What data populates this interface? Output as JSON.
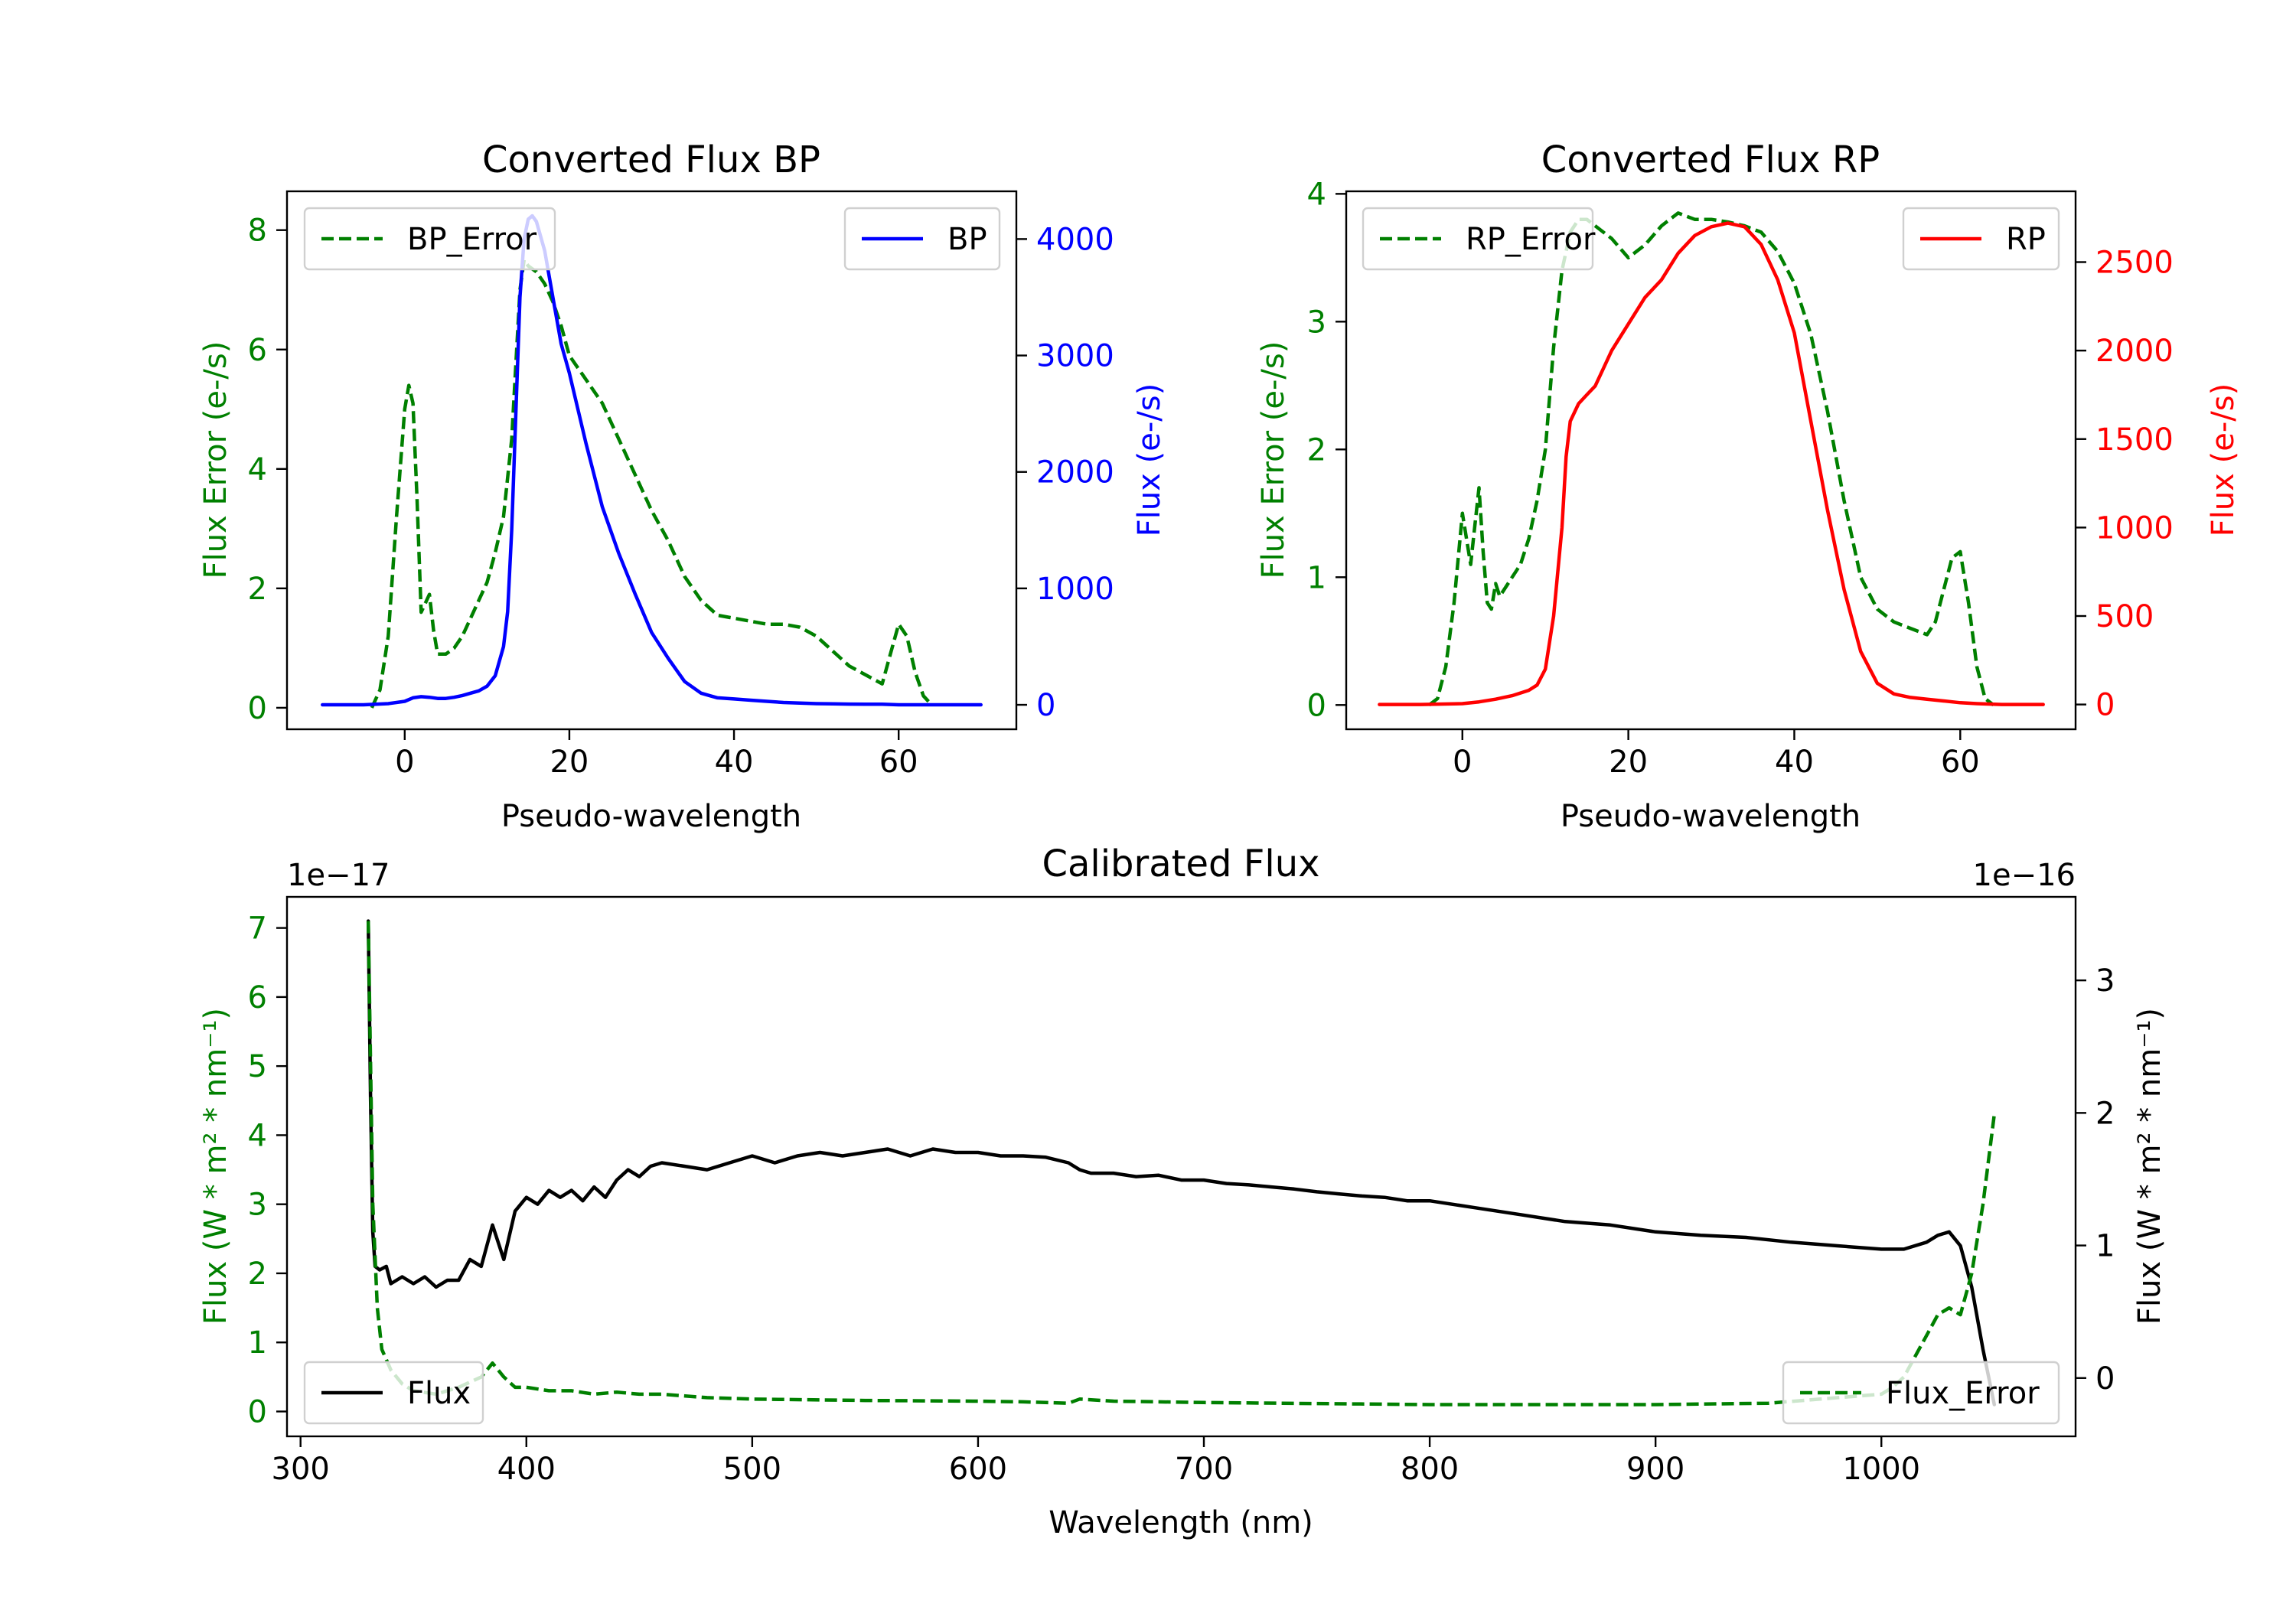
{
  "colors": {
    "error": "#008000",
    "bp": "#0000ff",
    "rp": "#ff0000",
    "flux": "#000000"
  },
  "chart_data": [
    {
      "type": "line",
      "id": "bp",
      "title": "Converted Flux BP",
      "xlabel": "Pseudo-wavelength",
      "ylabel_left": "Flux Error (e-/s)",
      "ylabel_right": "Flux (e-/s)",
      "xlim": [
        -14.3,
        74.3
      ],
      "ylim_left": [
        -0.36,
        8.65
      ],
      "ylim_right": [
        -210,
        4410
      ],
      "xticks": [
        0,
        20,
        40,
        60
      ],
      "yticks_left": [
        0,
        2,
        4,
        6,
        8
      ],
      "yticks_right": [
        0,
        1000,
        2000,
        3000,
        4000
      ],
      "series": [
        {
          "name": "BP_Error",
          "axis": "left",
          "style": "dashed",
          "color_key": "error",
          "x": [
            -4,
            -3,
            -2,
            -1,
            0,
            0.5,
            1,
            1.5,
            2,
            3,
            3.5,
            4,
            5,
            6,
            7,
            8,
            9,
            10,
            11,
            12,
            13,
            14,
            14.5,
            15,
            16,
            17,
            18,
            19,
            20,
            22,
            24,
            26,
            28,
            30,
            32,
            34,
            36,
            38,
            40,
            42,
            44,
            46,
            48,
            50,
            52,
            54,
            56,
            58,
            59,
            60,
            61,
            62,
            63,
            64
          ],
          "y": [
            0,
            0.3,
            1.2,
            3.2,
            5.0,
            5.4,
            5.1,
            3.5,
            1.6,
            1.9,
            1.3,
            0.9,
            0.9,
            1.0,
            1.2,
            1.5,
            1.8,
            2.1,
            2.6,
            3.2,
            4.5,
            7.0,
            7.5,
            7.4,
            7.3,
            7.1,
            6.8,
            6.4,
            5.9,
            5.5,
            5.1,
            4.5,
            3.9,
            3.3,
            2.8,
            2.2,
            1.8,
            1.55,
            1.5,
            1.45,
            1.4,
            1.4,
            1.35,
            1.2,
            0.95,
            0.7,
            0.55,
            0.4,
            0.9,
            1.4,
            1.2,
            0.6,
            0.2,
            0.05
          ]
        },
        {
          "name": "BP",
          "axis": "right",
          "style": "solid",
          "color_key": "bp",
          "x": [
            -10,
            -5,
            -2,
            0,
            1,
            2,
            3,
            4,
            5,
            6,
            7,
            8,
            9,
            10,
            11,
            12,
            12.5,
            13,
            13.5,
            14,
            14.5,
            15,
            15.5,
            16,
            17,
            18,
            19,
            20,
            22,
            24,
            26,
            28,
            30,
            32,
            34,
            36,
            37,
            38,
            40,
            42,
            44,
            46,
            48,
            50,
            52,
            54,
            56,
            58,
            60,
            62,
            65,
            70
          ],
          "y": [
            0,
            0,
            10,
            30,
            60,
            70,
            65,
            55,
            55,
            65,
            80,
            100,
            120,
            160,
            250,
            500,
            800,
            1500,
            2500,
            3500,
            4000,
            4170,
            4200,
            4150,
            3900,
            3500,
            3100,
            2850,
            2250,
            1700,
            1300,
            950,
            620,
            400,
            200,
            100,
            80,
            60,
            50,
            40,
            30,
            20,
            15,
            10,
            8,
            6,
            5,
            5,
            0,
            0,
            0,
            0
          ]
        }
      ],
      "legend": [
        {
          "label": "BP_Error",
          "position": "upper-left"
        },
        {
          "label": "BP",
          "position": "upper-right"
        }
      ]
    },
    {
      "type": "line",
      "id": "rp",
      "title": "Converted Flux RP",
      "xlabel": "Pseudo-wavelength",
      "ylabel_left": "Flux Error (e-/s)",
      "ylabel_right": "Flux (e-/s)",
      "xlim": [
        -14.0,
        73.9
      ],
      "ylim_left": [
        -0.19,
        4.02
      ],
      "ylim_right": [
        -140,
        2900
      ],
      "xticks": [
        0,
        20,
        40,
        60
      ],
      "yticks_left": [
        0,
        1,
        2,
        3,
        4
      ],
      "yticks_right": [
        0,
        500,
        1000,
        1500,
        2000,
        2500
      ],
      "series": [
        {
          "name": "RP_Error",
          "axis": "left",
          "style": "dashed",
          "color_key": "error",
          "x": [
            -4,
            -3,
            -2,
            -1,
            0,
            0.5,
            1,
            1.5,
            2,
            2.5,
            3,
            3.5,
            4,
            4.5,
            5,
            6,
            7,
            8,
            9,
            10,
            11,
            12,
            13,
            14,
            15,
            16,
            18,
            20,
            22,
            24,
            26,
            28,
            30,
            32,
            34,
            36,
            38,
            40,
            42,
            44,
            46,
            48,
            50,
            52,
            54,
            56,
            57,
            58,
            59,
            60,
            61,
            62,
            63,
            64
          ],
          "y": [
            0,
            0.05,
            0.3,
            0.8,
            1.5,
            1.3,
            1.1,
            1.4,
            1.7,
            1.2,
            0.8,
            0.75,
            0.95,
            0.85,
            0.9,
            1.0,
            1.1,
            1.3,
            1.6,
            2.0,
            2.8,
            3.4,
            3.7,
            3.8,
            3.8,
            3.75,
            3.65,
            3.5,
            3.6,
            3.75,
            3.85,
            3.8,
            3.8,
            3.78,
            3.75,
            3.7,
            3.55,
            3.3,
            2.9,
            2.3,
            1.6,
            1.0,
            0.75,
            0.65,
            0.6,
            0.55,
            0.65,
            0.9,
            1.15,
            1.2,
            0.8,
            0.3,
            0.05,
            0
          ]
        },
        {
          "name": "RP",
          "axis": "right",
          "style": "solid",
          "color_key": "rp",
          "x": [
            -10,
            -5,
            0,
            2,
            4,
            6,
            8,
            9,
            10,
            11,
            12,
            12.5,
            13,
            14,
            15,
            16,
            17,
            18,
            20,
            22,
            24,
            26,
            28,
            30,
            32,
            34,
            36,
            38,
            40,
            42,
            44,
            46,
            48,
            50,
            52,
            54,
            56,
            58,
            60,
            62,
            65,
            70
          ],
          "y": [
            0,
            0,
            5,
            15,
            30,
            50,
            80,
            110,
            200,
            500,
            1000,
            1400,
            1600,
            1700,
            1750,
            1800,
            1900,
            2000,
            2150,
            2300,
            2400,
            2550,
            2650,
            2700,
            2720,
            2700,
            2600,
            2400,
            2100,
            1600,
            1100,
            650,
            300,
            120,
            60,
            40,
            30,
            20,
            10,
            5,
            0,
            0
          ]
        }
      ],
      "legend": [
        {
          "label": "RP_Error",
          "position": "upper-left"
        },
        {
          "label": "RP",
          "position": "upper-right"
        }
      ]
    },
    {
      "type": "line",
      "id": "cal",
      "title": "Calibrated Flux",
      "xlabel": "Wavelength (nm)",
      "ylabel_left": "Flux (W * m² * nm⁻¹)",
      "ylabel_right": "Flux (W * m² * nm⁻¹)",
      "offset_left": "1e−17",
      "offset_right": "1e−16",
      "xlim": [
        294,
        1086
      ],
      "ylim_left": [
        -0.36,
        7.45
      ],
      "ylim_right": [
        -0.44,
        3.63
      ],
      "xticks": [
        300,
        400,
        500,
        600,
        700,
        800,
        900,
        1000
      ],
      "yticks_left": [
        0,
        1,
        2,
        3,
        4,
        5,
        6,
        7
      ],
      "yticks_right": [
        0,
        1,
        2,
        3
      ],
      "series": [
        {
          "name": "Flux",
          "axis": "left",
          "style": "solid",
          "color_key": "flux",
          "x": [
            330,
            331,
            332,
            333,
            335,
            338,
            340,
            345,
            350,
            355,
            360,
            365,
            370,
            375,
            380,
            385,
            390,
            395,
            400,
            405,
            410,
            415,
            420,
            425,
            430,
            435,
            440,
            445,
            450,
            455,
            460,
            470,
            480,
            490,
            500,
            510,
            520,
            530,
            540,
            550,
            560,
            570,
            580,
            590,
            600,
            610,
            620,
            630,
            640,
            645,
            650,
            660,
            670,
            680,
            690,
            700,
            710,
            720,
            730,
            740,
            750,
            760,
            770,
            780,
            790,
            800,
            820,
            840,
            860,
            880,
            900,
            920,
            940,
            960,
            980,
            1000,
            1010,
            1020,
            1025,
            1030,
            1035,
            1040,
            1045,
            1050
          ],
          "y": [
            7.1,
            4.5,
            2.6,
            2.1,
            2.05,
            2.1,
            1.85,
            1.95,
            1.85,
            1.95,
            1.8,
            1.9,
            1.9,
            2.2,
            2.1,
            2.7,
            2.2,
            2.9,
            3.1,
            3.0,
            3.2,
            3.1,
            3.2,
            3.05,
            3.25,
            3.1,
            3.35,
            3.5,
            3.4,
            3.55,
            3.6,
            3.55,
            3.5,
            3.6,
            3.7,
            3.6,
            3.7,
            3.75,
            3.7,
            3.75,
            3.8,
            3.7,
            3.8,
            3.75,
            3.75,
            3.7,
            3.7,
            3.68,
            3.6,
            3.5,
            3.45,
            3.45,
            3.4,
            3.42,
            3.35,
            3.35,
            3.3,
            3.28,
            3.25,
            3.22,
            3.18,
            3.15,
            3.12,
            3.1,
            3.05,
            3.05,
            2.95,
            2.85,
            2.75,
            2.7,
            2.6,
            2.55,
            2.52,
            2.45,
            2.4,
            2.35,
            2.35,
            2.45,
            2.55,
            2.6,
            2.4,
            1.8,
            0.9,
            0.1
          ]
        },
        {
          "name": "Flux_Error",
          "axis": "left",
          "style": "dashed",
          "color_key": "error",
          "x": [
            330,
            332,
            334,
            336,
            338,
            340,
            345,
            350,
            360,
            370,
            380,
            385,
            390,
            395,
            400,
            410,
            420,
            430,
            440,
            450,
            460,
            480,
            500,
            550,
            600,
            620,
            640,
            645,
            660,
            700,
            800,
            900,
            950,
            1000,
            1005,
            1010,
            1015,
            1020,
            1025,
            1030,
            1035,
            1040,
            1045,
            1050
          ],
          "y": [
            7.1,
            3.0,
            1.5,
            0.9,
            0.75,
            0.6,
            0.4,
            0.3,
            0.25,
            0.35,
            0.5,
            0.7,
            0.5,
            0.35,
            0.35,
            0.3,
            0.3,
            0.25,
            0.28,
            0.25,
            0.25,
            0.2,
            0.18,
            0.16,
            0.15,
            0.14,
            0.12,
            0.18,
            0.15,
            0.13,
            0.1,
            0.1,
            0.12,
            0.25,
            0.35,
            0.5,
            0.8,
            1.1,
            1.4,
            1.5,
            1.4,
            2.0,
            3.0,
            4.3
          ]
        }
      ],
      "legend": [
        {
          "label": "Flux",
          "position": "lower-left"
        },
        {
          "label": "Flux_Error",
          "position": "lower-right"
        }
      ]
    }
  ]
}
